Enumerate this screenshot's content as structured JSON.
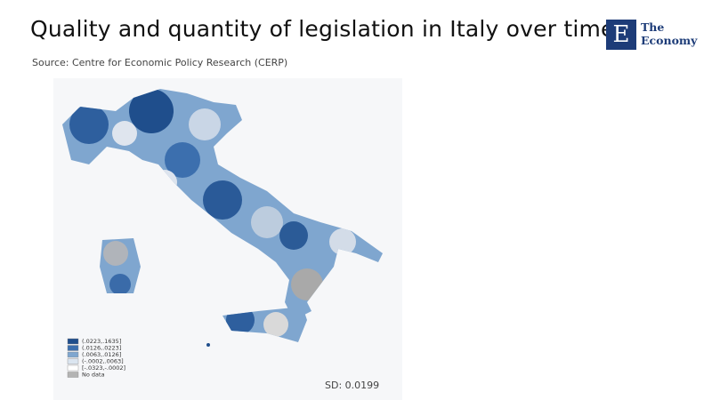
{
  "header": {
    "title": "Quality and quantity of legislation in Italy over time",
    "source": "Source: Centre for Economic Policy Research (CERP)"
  },
  "logo": {
    "mark": "E",
    "name": [
      "The",
      "Economy"
    ]
  },
  "map": {
    "legend": [
      "(.0223,.1635]",
      "(.0126,.0223]",
      "(.0063,.0126]",
      "(-.0002,.0063]",
      "[-.0323,-.0002]",
      "No data"
    ],
    "footnote": "SD: 0.0199"
  }
}
